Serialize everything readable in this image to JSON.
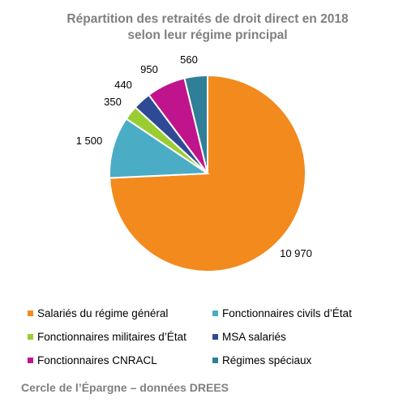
{
  "chart_data": {
    "type": "pie",
    "title": [
      "Répartition des retraités de droit direct en 2018",
      "selon leur régime principal"
    ],
    "categories": [
      "Salariés du régime général",
      "Fonctionnaires civils d’État",
      "Fonctionnaires militaires d’État",
      "MSA salariés",
      "Fonctionnaires CNRACL",
      "Régimes spéciaux"
    ],
    "values": [
      10970,
      1500,
      350,
      440,
      950,
      560
    ],
    "data_labels": [
      "10 970",
      "1 500",
      "350",
      "440",
      "950",
      "560"
    ],
    "colors": [
      "#f28a1d",
      "#4bacc6",
      "#9acd32",
      "#2f4a94",
      "#c0148c",
      "#2e7f97"
    ],
    "start_angle_deg": 0,
    "direction": "clockwise",
    "legend_position": "bottom"
  },
  "source": "Cercle de l’Épargne – données DREES"
}
